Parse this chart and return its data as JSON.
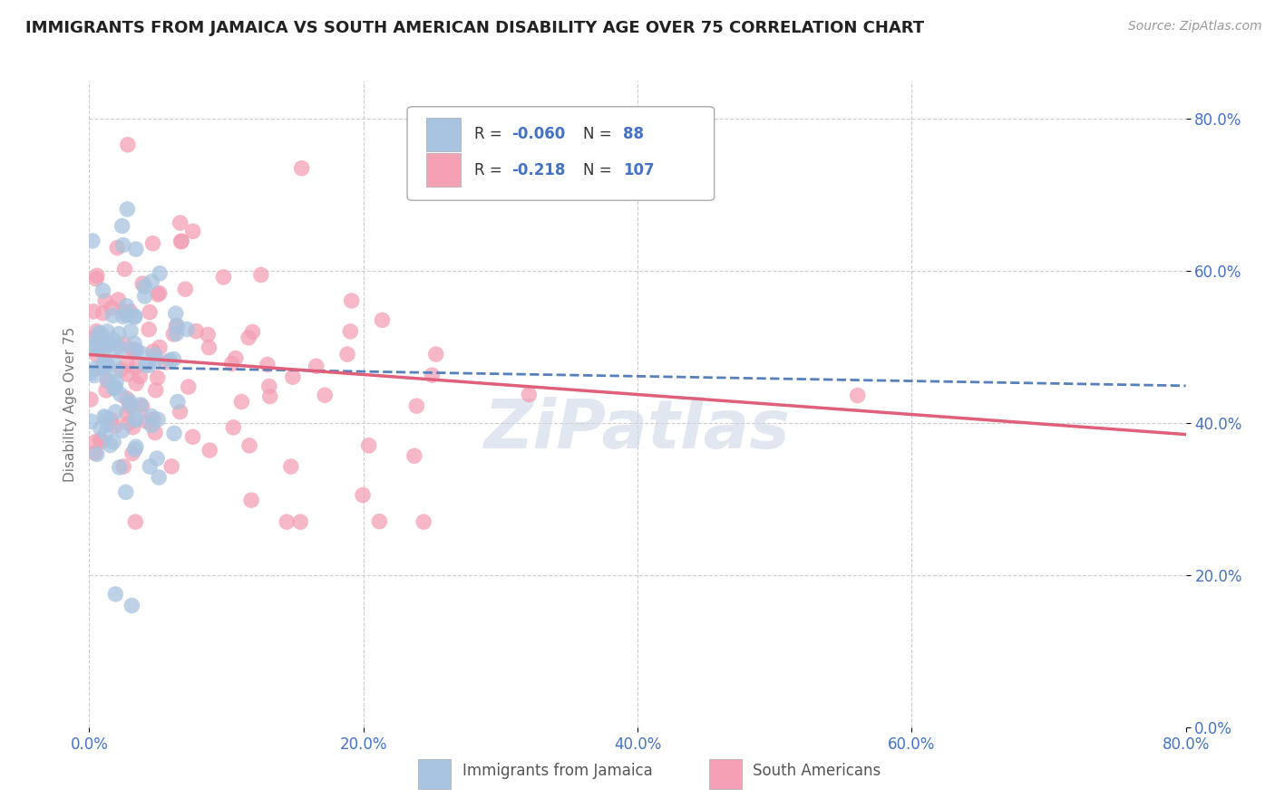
{
  "title": "IMMIGRANTS FROM JAMAICA VS SOUTH AMERICAN DISABILITY AGE OVER 75 CORRELATION CHART",
  "source": "Source: ZipAtlas.com",
  "ylabel": "Disability Age Over 75",
  "legend_label_1": "Immigrants from Jamaica",
  "legend_label_2": "South Americans",
  "R1": -0.06,
  "N1": 88,
  "R2": -0.218,
  "N2": 107,
  "color1": "#a8c4e0",
  "color2": "#f4a0b5",
  "line1_color": "#5580bb",
  "line2_color": "#e0607a",
  "watermark_color": "#ccd8e8",
  "xlim": [
    0.0,
    0.8
  ],
  "ylim": [
    0.0,
    0.85
  ],
  "x_ticks": [
    0.0,
    0.2,
    0.4,
    0.6,
    0.8
  ],
  "y_ticks": [
    0.0,
    0.2,
    0.4,
    0.6,
    0.8
  ],
  "x_tick_labels": [
    "0.0%",
    "20.0%",
    "40.0%",
    "60.0%",
    "80.0%"
  ],
  "y_tick_labels": [
    "0.0%",
    "20.0%",
    "40.0%",
    "60.0%",
    "80.0%"
  ],
  "title_color": "#222222",
  "tick_color": "#4472C4",
  "background_color": "#ffffff",
  "seed1": 42,
  "seed2": 77
}
